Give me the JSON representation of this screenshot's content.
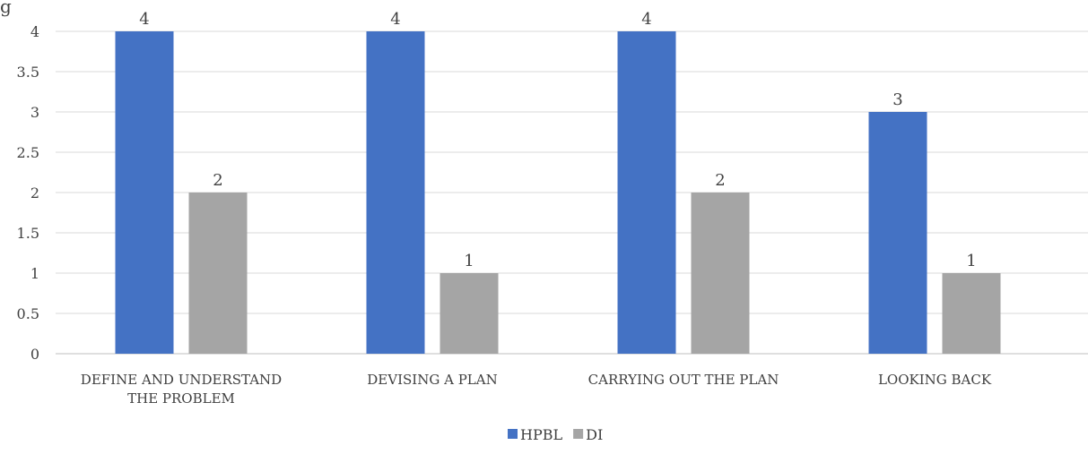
{
  "title_fragment": "g",
  "chart_data": {
    "type": "bar",
    "categories": [
      [
        "DEFINE AND UNDERSTAND",
        "THE PROBLEM"
      ],
      [
        "DEVISING A PLAN"
      ],
      [
        "CARRYING OUT THE PLAN"
      ],
      [
        "LOOKING BACK"
      ]
    ],
    "series": [
      {
        "name": "HPBL",
        "color": "#4472c4",
        "values": [
          4,
          4,
          4,
          3
        ]
      },
      {
        "name": "DI",
        "color": "#a5a5a5",
        "values": [
          2,
          1,
          2,
          1
        ]
      }
    ],
    "ylim": [
      0,
      4
    ],
    "yticks": [
      "0",
      "0.5",
      "1",
      "1.5",
      "2",
      "2.5",
      "3",
      "3.5",
      "4"
    ],
    "grid": true,
    "legend": "bottom"
  }
}
